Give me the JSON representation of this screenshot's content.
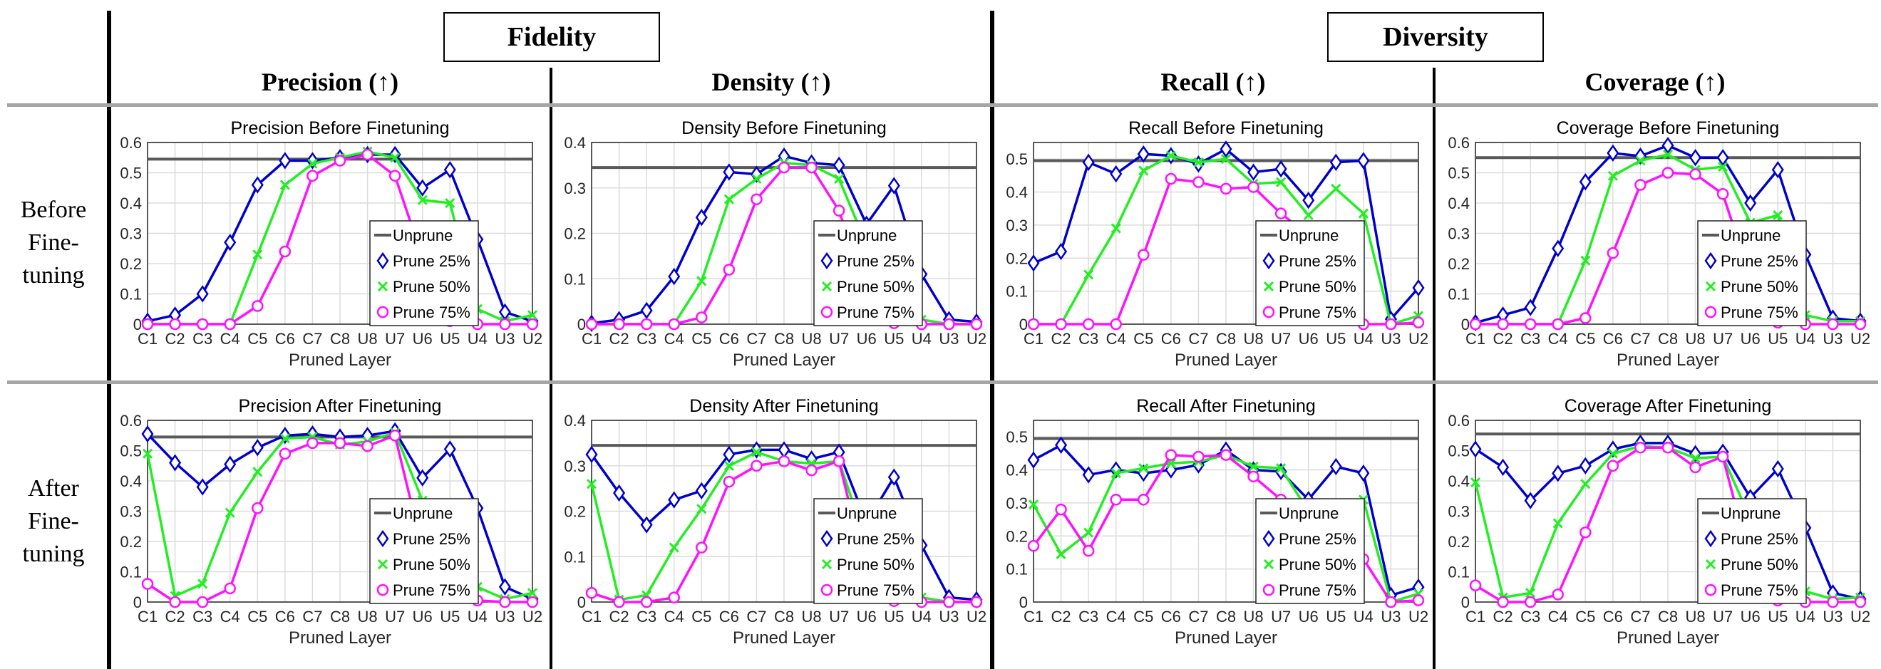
{
  "groups": {
    "fidelity": "Fidelity",
    "diversity": "Diversity"
  },
  "metrics": [
    "Precision (↑)",
    "Density (↑)",
    "Recall (↑)",
    "Coverage (↑)"
  ],
  "row_labels": {
    "before": [
      "Before",
      "Fine-",
      "tuning"
    ],
    "after": [
      "After",
      "Fine-",
      "tuning"
    ]
  },
  "colors": {
    "unprune": "#595959",
    "prune25": "#0000cc",
    "prune50": "#22ee22",
    "prune75": "#ff11ff",
    "grid": "#dcdcdc"
  },
  "chart_data": [
    {
      "type": "line",
      "title": "Precision Before Finetuning",
      "xlabel": "Pruned Layer",
      "ylabel": "",
      "categories": [
        "C1",
        "C2",
        "C3",
        "C4",
        "C5",
        "C6",
        "C7",
        "C8",
        "U8",
        "U7",
        "U6",
        "U5",
        "U4",
        "U3",
        "U2"
      ],
      "ylim": [
        0,
        0.6
      ],
      "yticks": [
        "0",
        "0.1",
        "0.2",
        "0.3",
        "0.4",
        "0.5",
        "0.6"
      ],
      "ytick_values": [
        0,
        0.1,
        0.2,
        0.3,
        0.4,
        0.5,
        0.6
      ],
      "legend_position": "center-right",
      "series": [
        {
          "name": "Unprune",
          "values": [
            0.545,
            0.545,
            0.545,
            0.545,
            0.545,
            0.545,
            0.545,
            0.545,
            0.545,
            0.545,
            0.545,
            0.545,
            0.545,
            0.545,
            0.545
          ]
        },
        {
          "name": "Prune 25%",
          "values": [
            0.01,
            0.03,
            0.1,
            0.27,
            0.46,
            0.54,
            0.54,
            0.55,
            0.56,
            0.56,
            0.45,
            0.51,
            0.28,
            0.04,
            0.01
          ]
        },
        {
          "name": "Prune 50%",
          "values": [
            0,
            0,
            0,
            0,
            0.23,
            0.46,
            0.53,
            0.55,
            0.57,
            0.55,
            0.41,
            0.4,
            0.05,
            0.01,
            0.03
          ]
        },
        {
          "name": "Prune 75%",
          "values": [
            0,
            0,
            0,
            0,
            0.06,
            0.24,
            0.49,
            0.54,
            0.56,
            0.49,
            0.22,
            0.01,
            0,
            0,
            0
          ]
        }
      ]
    },
    {
      "type": "line",
      "title": "Density Before Finetuning",
      "xlabel": "Pruned Layer",
      "ylabel": "",
      "categories": [
        "C1",
        "C2",
        "C3",
        "C4",
        "C5",
        "C6",
        "C7",
        "C8",
        "U8",
        "U7",
        "U6",
        "U5",
        "U4",
        "U3",
        "U2"
      ],
      "ylim": [
        0,
        0.4
      ],
      "yticks": [
        "0",
        "0.1",
        "0.2",
        "0.3",
        "0.4"
      ],
      "ytick_values": [
        0,
        0.1,
        0.2,
        0.3,
        0.4
      ],
      "legend_position": "center-right",
      "series": [
        {
          "name": "Unprune",
          "values": [
            0.345,
            0.345,
            0.345,
            0.345,
            0.345,
            0.345,
            0.345,
            0.345,
            0.345,
            0.345,
            0.345,
            0.345,
            0.345,
            0.345,
            0.345
          ]
        },
        {
          "name": "Prune 25%",
          "values": [
            0.002,
            0.01,
            0.03,
            0.105,
            0.235,
            0.335,
            0.33,
            0.37,
            0.355,
            0.35,
            0.22,
            0.305,
            0.11,
            0.01,
            0.005
          ]
        },
        {
          "name": "Prune 50%",
          "values": [
            0,
            0,
            0,
            0,
            0.095,
            0.275,
            0.32,
            0.355,
            0.35,
            0.32,
            0.175,
            0.195,
            0.01,
            0,
            0
          ]
        },
        {
          "name": "Prune 75%",
          "values": [
            0,
            0,
            0,
            0,
            0.015,
            0.12,
            0.275,
            0.345,
            0.345,
            0.25,
            0.07,
            0.002,
            0,
            0,
            0
          ]
        }
      ]
    },
    {
      "type": "line",
      "title": "Recall Before Finetuning",
      "xlabel": "Pruned Layer",
      "ylabel": "",
      "categories": [
        "C1",
        "C2",
        "C3",
        "C4",
        "C5",
        "C6",
        "C7",
        "C8",
        "U8",
        "U7",
        "U6",
        "U5",
        "U4",
        "U3",
        "U2"
      ],
      "ylim": [
        0,
        0.55
      ],
      "yticks": [
        "0",
        "0.1",
        "0.2",
        "0.3",
        "0.4",
        "0.5"
      ],
      "ytick_values": [
        0,
        0.1,
        0.2,
        0.3,
        0.4,
        0.5
      ],
      "legend_position": "center-right",
      "series": [
        {
          "name": "Unprune",
          "values": [
            0.495,
            0.495,
            0.495,
            0.495,
            0.495,
            0.495,
            0.495,
            0.495,
            0.495,
            0.495,
            0.495,
            0.495,
            0.495,
            0.495,
            0.495
          ]
        },
        {
          "name": "Prune 25%",
          "values": [
            0.185,
            0.22,
            0.49,
            0.455,
            0.515,
            0.51,
            0.485,
            0.53,
            0.46,
            0.47,
            0.375,
            0.49,
            0.495,
            0.015,
            0.11
          ]
        },
        {
          "name": "Prune 50%",
          "values": [
            0,
            0,
            0.15,
            0.29,
            0.465,
            0.51,
            0.49,
            0.5,
            0.425,
            0.43,
            0.33,
            0.41,
            0.335,
            0,
            0.025
          ]
        },
        {
          "name": "Prune 75%",
          "values": [
            0,
            0,
            0,
            0,
            0.21,
            0.44,
            0.43,
            0.41,
            0.415,
            0.335,
            0.27,
            0.04,
            0,
            0,
            0.005
          ]
        }
      ]
    },
    {
      "type": "line",
      "title": "Coverage Before Finetuning",
      "xlabel": "Pruned Layer",
      "ylabel": "",
      "categories": [
        "C1",
        "C2",
        "C3",
        "C4",
        "C5",
        "C6",
        "C7",
        "C8",
        "U8",
        "U7",
        "U6",
        "U5",
        "U4",
        "U3",
        "U2"
      ],
      "ylim": [
        0,
        0.6
      ],
      "yticks": [
        "0",
        "0.1",
        "0.2",
        "0.3",
        "0.4",
        "0.5",
        "0.6"
      ],
      "ytick_values": [
        0,
        0.1,
        0.2,
        0.3,
        0.4,
        0.5,
        0.6
      ],
      "legend_position": "center-right",
      "series": [
        {
          "name": "Unprune",
          "values": [
            0.55,
            0.55,
            0.55,
            0.55,
            0.55,
            0.55,
            0.55,
            0.55,
            0.55,
            0.55,
            0.55,
            0.55,
            0.55,
            0.55,
            0.55
          ]
        },
        {
          "name": "Prune 25%",
          "values": [
            0.005,
            0.03,
            0.055,
            0.25,
            0.47,
            0.565,
            0.555,
            0.59,
            0.55,
            0.55,
            0.4,
            0.51,
            0.23,
            0.02,
            0.01
          ]
        },
        {
          "name": "Prune 50%",
          "values": [
            0,
            0,
            0,
            0,
            0.21,
            0.49,
            0.54,
            0.56,
            0.51,
            0.52,
            0.335,
            0.36,
            0.03,
            0.01,
            0.01
          ]
        },
        {
          "name": "Prune 75%",
          "values": [
            0,
            0,
            0,
            0,
            0.02,
            0.235,
            0.46,
            0.5,
            0.495,
            0.43,
            0.155,
            0.005,
            0,
            0,
            0
          ]
        }
      ]
    },
    {
      "type": "line",
      "title": "Precision After Finetuning",
      "xlabel": "Pruned Layer",
      "ylabel": "",
      "categories": [
        "C1",
        "C2",
        "C3",
        "C4",
        "C5",
        "C6",
        "C7",
        "C8",
        "U8",
        "U7",
        "U6",
        "U5",
        "U4",
        "U3",
        "U2"
      ],
      "ylim": [
        0,
        0.6
      ],
      "yticks": [
        "0",
        "0.1",
        "0.2",
        "0.3",
        "0.4",
        "0.5",
        "0.6"
      ],
      "ytick_values": [
        0,
        0.1,
        0.2,
        0.3,
        0.4,
        0.5,
        0.6
      ],
      "legend_position": "center-right",
      "series": [
        {
          "name": "Unprune",
          "values": [
            0.545,
            0.545,
            0.545,
            0.545,
            0.545,
            0.545,
            0.545,
            0.545,
            0.545,
            0.545,
            0.545,
            0.545,
            0.545,
            0.545,
            0.545
          ]
        },
        {
          "name": "Prune 25%",
          "values": [
            0.555,
            0.46,
            0.38,
            0.455,
            0.51,
            0.55,
            0.555,
            0.545,
            0.55,
            0.565,
            0.41,
            0.505,
            0.31,
            0.05,
            0.01
          ]
        },
        {
          "name": "Prune 50%",
          "values": [
            0.49,
            0.02,
            0.06,
            0.295,
            0.43,
            0.54,
            0.545,
            0.52,
            0.53,
            0.56,
            0.335,
            0.31,
            0.05,
            0.01,
            0.03
          ]
        },
        {
          "name": "Prune 75%",
          "values": [
            0.06,
            0,
            0,
            0.045,
            0.31,
            0.49,
            0.525,
            0.525,
            0.515,
            0.55,
            0.175,
            0.015,
            0.005,
            0,
            0
          ]
        }
      ]
    },
    {
      "type": "line",
      "title": "Density After Finetuning",
      "xlabel": "Pruned Layer",
      "ylabel": "",
      "categories": [
        "C1",
        "C2",
        "C3",
        "C4",
        "C5",
        "C6",
        "C7",
        "C8",
        "U8",
        "U7",
        "U6",
        "U5",
        "U4",
        "U3",
        "U2"
      ],
      "ylim": [
        0,
        0.4
      ],
      "yticks": [
        "0",
        "0.1",
        "0.2",
        "0.3",
        "0.4"
      ],
      "ytick_values": [
        0,
        0.1,
        0.2,
        0.3,
        0.4
      ],
      "legend_position": "center-right",
      "series": [
        {
          "name": "Unprune",
          "values": [
            0.345,
            0.345,
            0.345,
            0.345,
            0.345,
            0.345,
            0.345,
            0.345,
            0.345,
            0.345,
            0.345,
            0.345,
            0.345,
            0.345,
            0.345
          ]
        },
        {
          "name": "Prune 25%",
          "values": [
            0.325,
            0.24,
            0.17,
            0.225,
            0.245,
            0.325,
            0.335,
            0.335,
            0.315,
            0.33,
            0.175,
            0.275,
            0.125,
            0.01,
            0.005
          ]
        },
        {
          "name": "Prune 50%",
          "values": [
            0.26,
            0.005,
            0.015,
            0.12,
            0.205,
            0.3,
            0.33,
            0.31,
            0.305,
            0.31,
            0.13,
            0.125,
            0.01,
            0,
            0
          ]
        },
        {
          "name": "Prune 75%",
          "values": [
            0.02,
            0,
            0,
            0.01,
            0.12,
            0.265,
            0.3,
            0.31,
            0.29,
            0.31,
            0.06,
            0.002,
            0,
            0,
            0
          ]
        }
      ]
    },
    {
      "type": "line",
      "title": "Recall After Finetuning",
      "xlabel": "Pruned Layer",
      "ylabel": "",
      "categories": [
        "C1",
        "C2",
        "C3",
        "C4",
        "C5",
        "C6",
        "C7",
        "C8",
        "U8",
        "U7",
        "U6",
        "U5",
        "U4",
        "U3",
        "U2"
      ],
      "ylim": [
        0,
        0.55
      ],
      "yticks": [
        "0",
        "0.1",
        "0.2",
        "0.3",
        "0.4",
        "0.5"
      ],
      "ytick_values": [
        0,
        0.1,
        0.2,
        0.3,
        0.4,
        0.5
      ],
      "legend_position": "center-right",
      "series": [
        {
          "name": "Unprune",
          "values": [
            0.495,
            0.495,
            0.495,
            0.495,
            0.495,
            0.495,
            0.495,
            0.495,
            0.495,
            0.495,
            0.495,
            0.495,
            0.495,
            0.495,
            0.495
          ]
        },
        {
          "name": "Prune 25%",
          "values": [
            0.43,
            0.475,
            0.385,
            0.4,
            0.39,
            0.4,
            0.415,
            0.46,
            0.4,
            0.395,
            0.31,
            0.41,
            0.39,
            0.02,
            0.045
          ]
        },
        {
          "name": "Prune 50%",
          "values": [
            0.295,
            0.145,
            0.21,
            0.39,
            0.405,
            0.42,
            0.425,
            0.445,
            0.41,
            0.405,
            0.275,
            0.275,
            0.31,
            0,
            0.025
          ]
        },
        {
          "name": "Prune 75%",
          "values": [
            0.17,
            0.28,
            0.155,
            0.31,
            0.31,
            0.445,
            0.44,
            0.445,
            0.38,
            0.31,
            0.13,
            0.035,
            0.13,
            0,
            0.005
          ]
        }
      ]
    },
    {
      "type": "line",
      "title": "Coverage After Finetuning",
      "xlabel": "Pruned Layer",
      "ylabel": "",
      "categories": [
        "C1",
        "C2",
        "C3",
        "C4",
        "C5",
        "C6",
        "C7",
        "C8",
        "U8",
        "U7",
        "U6",
        "U5",
        "U4",
        "U3",
        "U2"
      ],
      "ylim": [
        0,
        0.6
      ],
      "yticks": [
        "0",
        "0.1",
        "0.2",
        "0.3",
        "0.4",
        "0.5",
        "0.6"
      ],
      "ytick_values": [
        0,
        0.1,
        0.2,
        0.3,
        0.4,
        0.5,
        0.6
      ],
      "legend_position": "center-right",
      "series": [
        {
          "name": "Unprune",
          "values": [
            0.555,
            0.555,
            0.555,
            0.555,
            0.555,
            0.555,
            0.555,
            0.555,
            0.555,
            0.555,
            0.555,
            0.555,
            0.555,
            0.555,
            0.555
          ]
        },
        {
          "name": "Prune 25%",
          "values": [
            0.505,
            0.445,
            0.335,
            0.425,
            0.45,
            0.505,
            0.525,
            0.525,
            0.49,
            0.495,
            0.345,
            0.44,
            0.245,
            0.03,
            0.01
          ]
        },
        {
          "name": "Prune 50%",
          "values": [
            0.395,
            0.015,
            0.03,
            0.26,
            0.39,
            0.49,
            0.515,
            0.51,
            0.475,
            0.48,
            0.275,
            0.245,
            0.035,
            0.01,
            0.015
          ]
        },
        {
          "name": "Prune 75%",
          "values": [
            0.055,
            0,
            0,
            0.025,
            0.23,
            0.45,
            0.51,
            0.51,
            0.445,
            0.48,
            0.13,
            0.005,
            0,
            0,
            0
          ]
        }
      ]
    }
  ]
}
